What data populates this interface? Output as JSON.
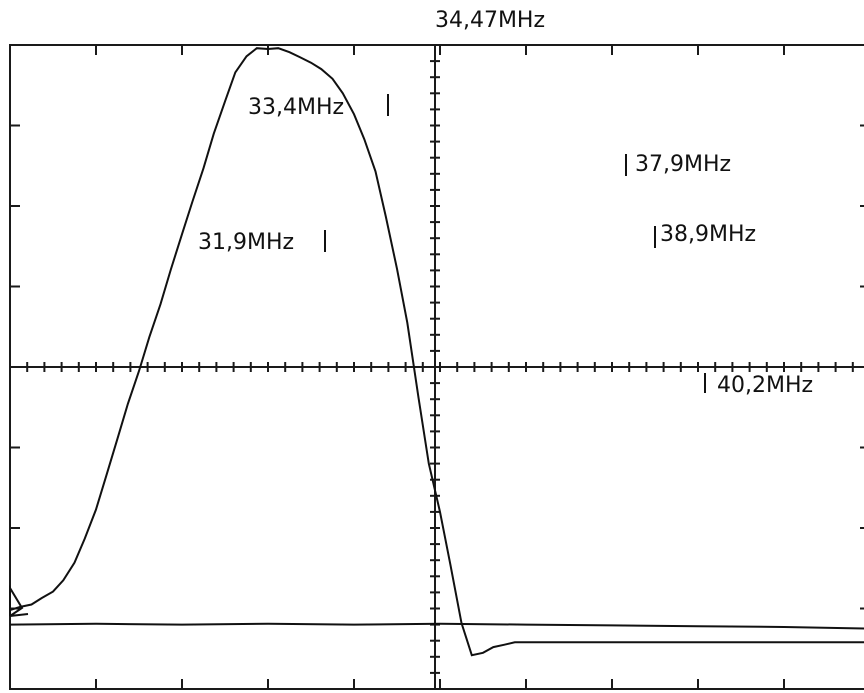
{
  "chart_data": {
    "type": "line",
    "title": "",
    "xlabel": "",
    "ylabel": "",
    "grid": true,
    "markers": [
      {
        "label": "34,47MHz"
      },
      {
        "label": "33,4MHz"
      },
      {
        "label": "31,9MHz"
      },
      {
        "label": "37,9MHz"
      },
      {
        "label": "38,9MHz"
      },
      {
        "label": "40,2MHz"
      }
    ],
    "series": [
      {
        "x": [
          0.0,
          0.12,
          0.25,
          0.37,
          0.5,
          0.62,
          0.75,
          0.87,
          1.0,
          1.12,
          1.25,
          1.37,
          1.5,
          1.62,
          1.75,
          1.87,
          2.0,
          2.12,
          2.25,
          2.37,
          2.5,
          2.62,
          2.75,
          2.87,
          3.0,
          3.12,
          3.25,
          3.37,
          3.5,
          3.62,
          3.75,
          3.87,
          4.0,
          4.12,
          4.25,
          4.37,
          4.5,
          4.62,
          4.75,
          4.87,
          5.0,
          5.12,
          5.25,
          5.37,
          5.5,
          5.62,
          5.75,
          5.87,
          6.0,
          6.12,
          6.25,
          6.37,
          6.5,
          6.62,
          6.75,
          6.87,
          7.0,
          7.12,
          7.25,
          7.37,
          7.5,
          7.62,
          7.75,
          7.87,
          8.0,
          8.12,
          8.25,
          8.37,
          8.5,
          8.62,
          8.75,
          8.87,
          9.0,
          9.12,
          9.25,
          9.37,
          9.5,
          9.62,
          9.75,
          9.87,
          10.0
        ],
        "y": [
          -3.02,
          -2.98,
          -2.95,
          -2.87,
          -2.79,
          -2.65,
          -2.43,
          -2.13,
          -1.77,
          -1.35,
          -0.89,
          -0.46,
          -0.05,
          0.37,
          0.78,
          1.21,
          1.65,
          2.05,
          2.47,
          2.9,
          3.3,
          3.66,
          3.86,
          3.96,
          3.95,
          3.96,
          3.91,
          3.85,
          3.78,
          3.7,
          3.58,
          3.4,
          3.14,
          2.83,
          2.43,
          1.87,
          1.22,
          0.55,
          -0.38,
          -1.2,
          -1.8,
          -2.45,
          -3.18,
          -3.58,
          -3.55,
          -3.48,
          -3.45,
          -3.42,
          -3.42,
          -3.42,
          -3.42,
          -3.42,
          -3.42,
          -3.42,
          -3.42,
          -3.42,
          -3.42,
          -3.42,
          -3.42,
          -3.42,
          -3.42,
          -3.42,
          -3.42,
          -3.42,
          -3.42,
          -3.42,
          -3.42,
          -3.42,
          -3.42,
          -3.42,
          -3.42,
          -3.42,
          -3.42,
          -3.42,
          -3.42,
          -3.42,
          -3.42,
          -3.42,
          -3.42,
          -3.42,
          -3.42
        ]
      },
      {
        "x": [
          0,
          1,
          2,
          3,
          4,
          5,
          6,
          7,
          8,
          9,
          10
        ],
        "y": [
          -3.2,
          -3.19,
          -3.2,
          -3.19,
          -3.2,
          -3.19,
          -3.2,
          -3.21,
          -3.22,
          -3.23,
          -3.25
        ]
      }
    ]
  }
}
